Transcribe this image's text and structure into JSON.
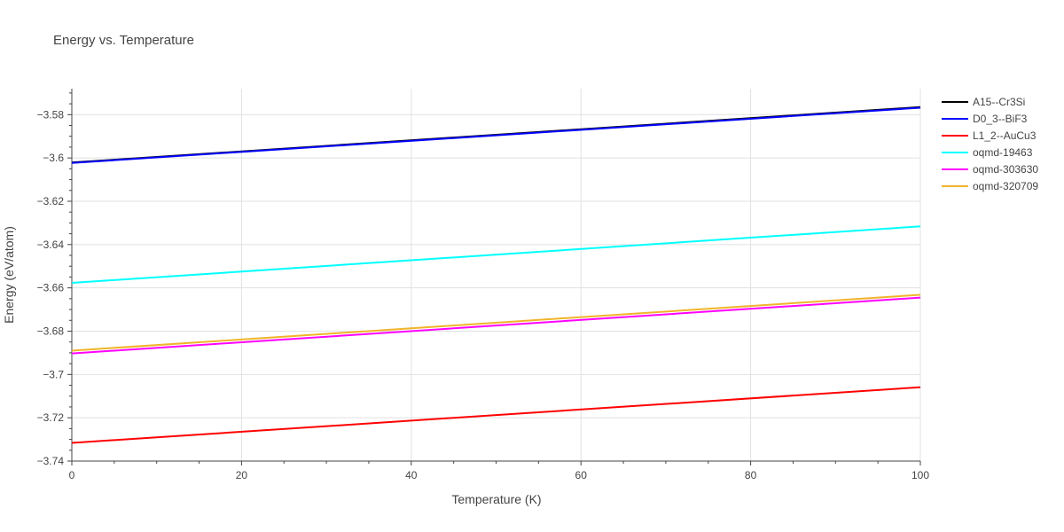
{
  "chart_data": {
    "type": "line",
    "title": "Energy vs. Temperature",
    "xlabel": "Temperature (K)",
    "ylabel": "Energy (eV/atom)",
    "xlim": [
      0,
      100
    ],
    "ylim": [
      -3.74,
      -3.568
    ],
    "xticks": [
      0,
      20,
      40,
      60,
      80,
      100
    ],
    "xtick_labels": [
      "0",
      "20",
      "40",
      "60",
      "80",
      "100"
    ],
    "yticks": [
      -3.74,
      -3.72,
      -3.7,
      -3.68,
      -3.66,
      -3.64,
      -3.62,
      -3.6,
      -3.58
    ],
    "ytick_labels": [
      "−3.74",
      "−3.72",
      "−3.7",
      "−3.68",
      "−3.66",
      "−3.64",
      "−3.62",
      "−3.6",
      "−3.58"
    ],
    "grid": true,
    "legend_position": "top-right",
    "series": [
      {
        "name": "A15--Cr3Si",
        "color": "#000000",
        "x": [
          0,
          100
        ],
        "y": [
          -3.6021,
          -3.5765
        ]
      },
      {
        "name": "D0_3--BiF3",
        "color": "#0000ff",
        "x": [
          0,
          100
        ],
        "y": [
          -3.6023,
          -3.5768
        ]
      },
      {
        "name": "L1_2--AuCu3",
        "color": "#ff0000",
        "x": [
          0,
          100
        ],
        "y": [
          -3.7316,
          -3.7059
        ]
      },
      {
        "name": "oqmd-19463",
        "color": "#00ffff",
        "x": [
          0,
          100
        ],
        "y": [
          -3.6577,
          -3.6316
        ]
      },
      {
        "name": "oqmd-303630",
        "color": "#ff00ff",
        "x": [
          0,
          100
        ],
        "y": [
          -3.6903,
          -3.6645
        ]
      },
      {
        "name": "oqmd-320709",
        "color": "#f0b429",
        "x": [
          0,
          100
        ],
        "y": [
          -3.689,
          -3.6632
        ]
      }
    ]
  }
}
